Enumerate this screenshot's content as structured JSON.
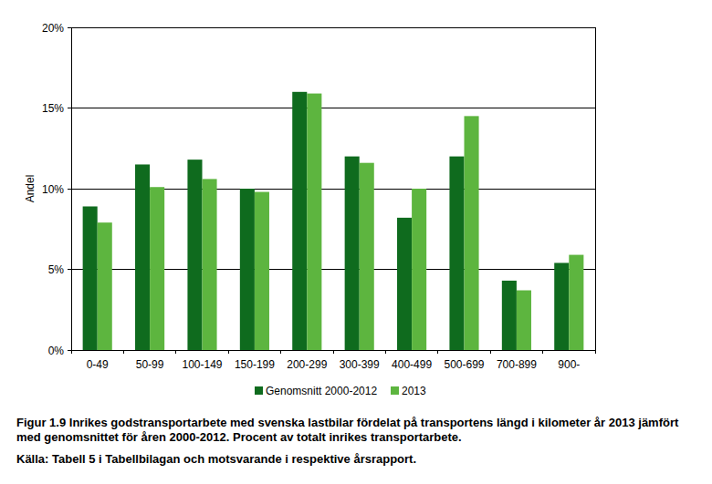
{
  "chart_data": {
    "type": "bar",
    "title": "Figur 1.9 Inrikes godstransportarbete med svenska lastbilar fördelat på transportens längd i kilometer år 2013 jämfört med genomsnittet för åren 2000-2012. Procent av totalt inrikes transportarbete.",
    "source": "Källa: Tabell 5 i Tabellbilagan och motsvarande i respektive årsrapport.",
    "y_label": "Andel",
    "categories": [
      "0-49",
      "50-99",
      "100-149",
      "150-199",
      "200-299",
      "300-399",
      "400-499",
      "500-699",
      "700-899",
      "900-"
    ],
    "series": [
      {
        "name": "Genomsnitt 2000-2012",
        "color": "#0f6b1e",
        "values": [
          8.9,
          11.5,
          11.8,
          10.0,
          16.0,
          12.0,
          8.2,
          12.0,
          4.3,
          5.4
        ]
      },
      {
        "name": "2013",
        "color": "#5db53f",
        "values": [
          7.9,
          10.1,
          10.6,
          9.8,
          15.9,
          11.6,
          10.0,
          14.5,
          3.7,
          5.9
        ]
      }
    ],
    "ylim": [
      0,
      20
    ],
    "yticks": [
      {
        "value": 0,
        "label": "0%"
      },
      {
        "value": 5,
        "label": "5%"
      },
      {
        "value": 10,
        "label": "10%"
      },
      {
        "value": 15,
        "label": "15%"
      },
      {
        "value": 20,
        "label": "20%"
      }
    ],
    "grid": true,
    "legend": "bottom"
  }
}
